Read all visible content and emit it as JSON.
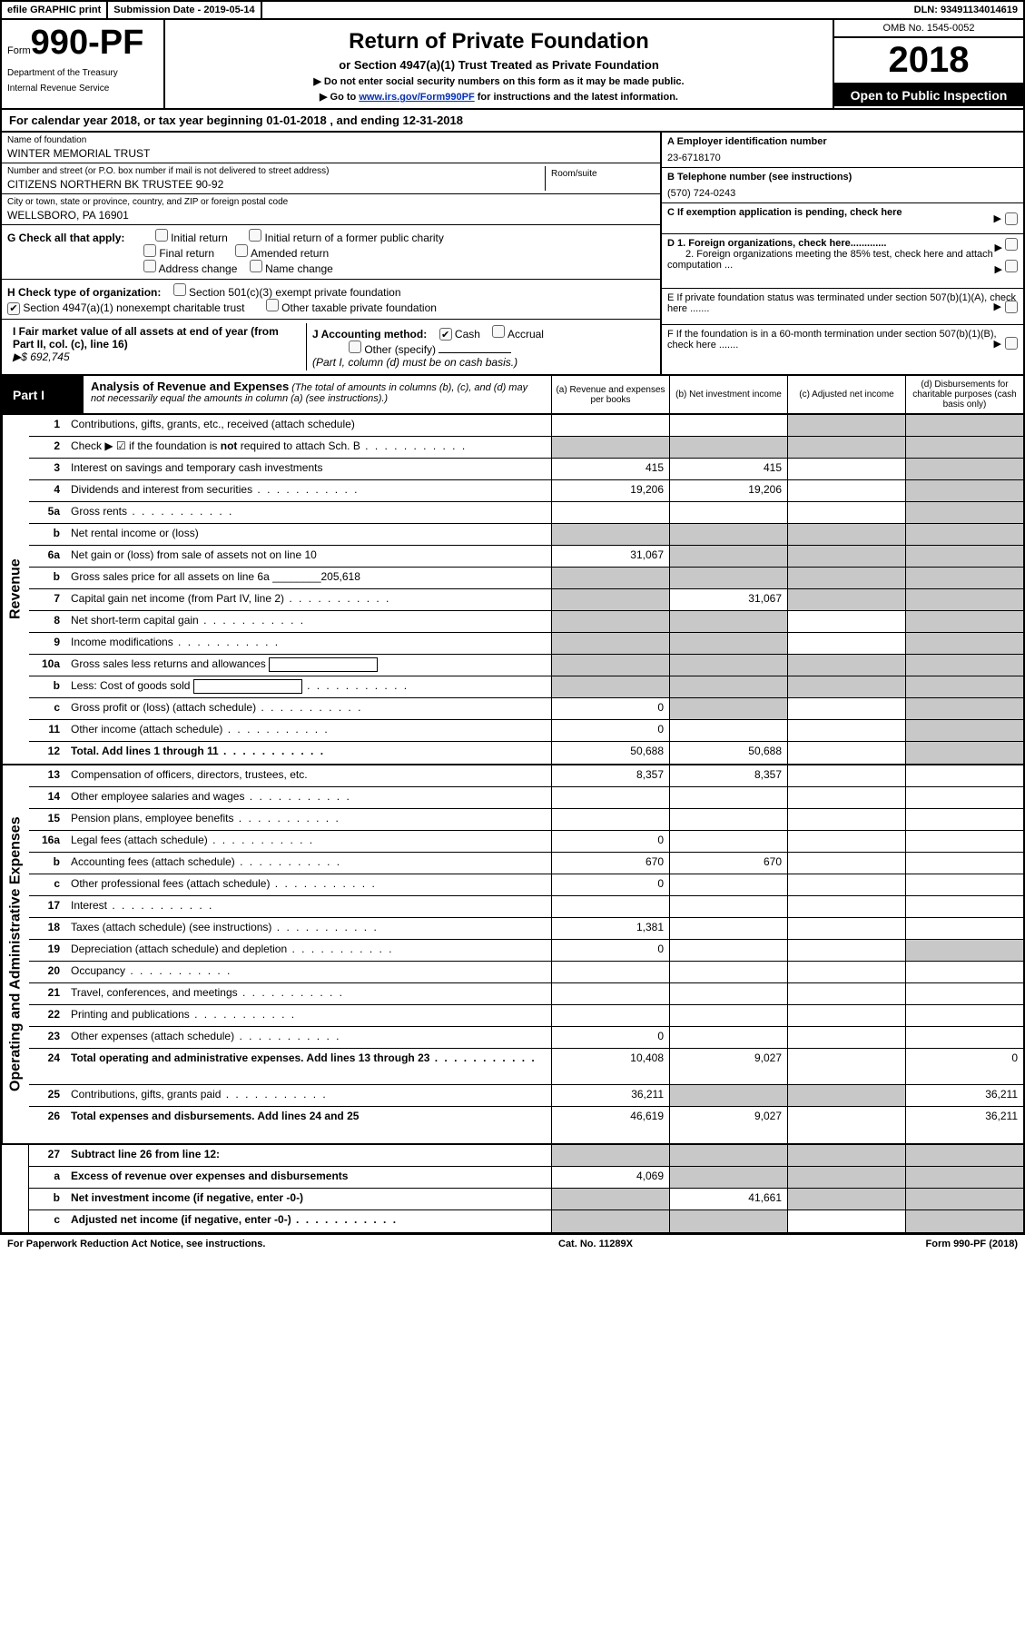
{
  "top_bar": {
    "efile": "efile GRAPHIC print",
    "submission": "Submission Date - 2019-05-14",
    "dln": "DLN: 93491134014619"
  },
  "header": {
    "form_prefix": "Form",
    "form_number": "990-PF",
    "dept1": "Department of the Treasury",
    "dept2": "Internal Revenue Service",
    "title": "Return of Private Foundation",
    "subtitle": "or Section 4947(a)(1) Trust Treated as Private Foundation",
    "note1": "▶ Do not enter social security numbers on this form as it may be made public.",
    "note2_prefix": "▶ Go to ",
    "note2_link": "www.irs.gov/Form990PF",
    "note2_suffix": " for instructions and the latest information.",
    "omb": "OMB No. 1545-0052",
    "year": "2018",
    "open_public": "Open to Public Inspection"
  },
  "cal_year": "For calendar year 2018, or tax year beginning 01-01-2018            , and ending 12-31-2018",
  "info": {
    "name_label": "Name of foundation",
    "name": "WINTER MEMORIAL TRUST",
    "addr_label": "Number and street (or P.O. box number if mail is not delivered to street address)",
    "addr": "CITIZENS NORTHERN BK TRUSTEE 90-92",
    "room_label": "Room/suite",
    "city_label": "City or town, state or province, country, and ZIP or foreign postal code",
    "city": "WELLSBORO, PA  16901",
    "ein_label": "A Employer identification number",
    "ein": "23-6718170",
    "phone_label": "B Telephone number (see instructions)",
    "phone": "(570) 724-0243",
    "c_label": "C If exemption application is pending, check here",
    "d1_label": "D 1. Foreign organizations, check here.............",
    "d2_label": "2. Foreign organizations meeting the 85% test, check here and attach computation ...",
    "e_label": "E  If private foundation status was terminated under section 507(b)(1)(A), check here .......",
    "f_label": "F  If the foundation is in a 60-month termination under section 507(b)(1)(B), check here ......."
  },
  "section_g": {
    "label": "G Check all that apply:",
    "opt1": "Initial return",
    "opt2": "Initial return of a former public charity",
    "opt3": "Final return",
    "opt4": "Amended return",
    "opt5": "Address change",
    "opt6": "Name change"
  },
  "section_h": {
    "label": "H Check type of organization:",
    "opt1": "Section 501(c)(3) exempt private foundation",
    "opt2": "Section 4947(a)(1) nonexempt charitable trust",
    "opt3": "Other taxable private foundation"
  },
  "section_i": {
    "left_label": "I Fair market value of all assets at end of year (from Part II, col. (c), line 16)",
    "left_val": "▶$  692,745",
    "j_label": "J Accounting method:",
    "j_cash": "Cash",
    "j_accrual": "Accrual",
    "j_other": "Other (specify)",
    "j_note": "(Part I, column (d) must be on cash basis.)"
  },
  "part1": {
    "label": "Part I",
    "title": "Analysis of Revenue and Expenses",
    "note": "(The total of amounts in columns (b), (c), and (d) may not necessarily equal the amounts in column (a) (see instructions).)",
    "col_a": "(a)   Revenue and expenses per books",
    "col_b": "(b)  Net investment income",
    "col_c": "(c)  Adjusted net income",
    "col_d": "(d)  Disbursements for charitable purposes (cash basis only)"
  },
  "vert_revenue": "Revenue",
  "vert_expenses": "Operating and Administrative Expenses",
  "rows_revenue": [
    {
      "n": "1",
      "d": "Contributions, gifts, grants, etc., received (attach schedule)",
      "a": "",
      "b": "",
      "c": "g",
      "dd": "g"
    },
    {
      "n": "2",
      "d": "Check ▶ ☑ if the foundation is not required to attach Sch. B",
      "dots": true,
      "a": "g",
      "b": "g",
      "c": "g",
      "dd": "g",
      "bold_not": true
    },
    {
      "n": "3",
      "d": "Interest on savings and temporary cash investments",
      "a": "415",
      "b": "415",
      "c": "",
      "dd": "g"
    },
    {
      "n": "4",
      "d": "Dividends and interest from securities",
      "dots": true,
      "a": "19,206",
      "b": "19,206",
      "c": "",
      "dd": "g"
    },
    {
      "n": "5a",
      "d": "Gross rents",
      "dots": true,
      "a": "",
      "b": "",
      "c": "",
      "dd": "g"
    },
    {
      "n": "b",
      "d": "Net rental income or (loss)",
      "a": "g",
      "b": "g",
      "c": "g",
      "dd": "g"
    },
    {
      "n": "6a",
      "d": "Net gain or (loss) from sale of assets not on line 10",
      "a": "31,067",
      "b": "g",
      "c": "g",
      "dd": "g"
    },
    {
      "n": "b",
      "d": "Gross sales price for all assets on line 6a ________205,618",
      "a": "g",
      "b": "g",
      "c": "g",
      "dd": "g"
    },
    {
      "n": "7",
      "d": "Capital gain net income (from Part IV, line 2)",
      "dots": true,
      "a": "g",
      "b": "31,067",
      "c": "g",
      "dd": "g"
    },
    {
      "n": "8",
      "d": "Net short-term capital gain",
      "dots": true,
      "a": "g",
      "b": "g",
      "c": "",
      "dd": "g"
    },
    {
      "n": "9",
      "d": "Income modifications",
      "dots": true,
      "a": "g",
      "b": "g",
      "c": "",
      "dd": "g"
    },
    {
      "n": "10a",
      "d": "Gross sales less returns and allowances",
      "box": true,
      "a": "g",
      "b": "g",
      "c": "g",
      "dd": "g"
    },
    {
      "n": "b",
      "d": "Less: Cost of goods sold",
      "dots": true,
      "box": true,
      "a": "g",
      "b": "g",
      "c": "g",
      "dd": "g"
    },
    {
      "n": "c",
      "d": "Gross profit or (loss) (attach schedule)",
      "dots": true,
      "a": "0",
      "b": "g",
      "c": "",
      "dd": "g"
    },
    {
      "n": "11",
      "d": "Other income (attach schedule)",
      "dots": true,
      "a": "0",
      "b": "",
      "c": "",
      "dd": "g"
    },
    {
      "n": "12",
      "d": "Total. Add lines 1 through 11",
      "bold": true,
      "dots": true,
      "a": "50,688",
      "b": "50,688",
      "c": "",
      "dd": "g"
    }
  ],
  "rows_expenses": [
    {
      "n": "13",
      "d": "Compensation of officers, directors, trustees, etc.",
      "a": "8,357",
      "b": "8,357",
      "c": "",
      "dd": ""
    },
    {
      "n": "14",
      "d": "Other employee salaries and wages",
      "dots": true,
      "a": "",
      "b": "",
      "c": "",
      "dd": ""
    },
    {
      "n": "15",
      "d": "Pension plans, employee benefits",
      "dots": true,
      "a": "",
      "b": "",
      "c": "",
      "dd": ""
    },
    {
      "n": "16a",
      "d": "Legal fees (attach schedule)",
      "dots": true,
      "a": "0",
      "b": "",
      "c": "",
      "dd": ""
    },
    {
      "n": "b",
      "d": "Accounting fees (attach schedule)",
      "dots": true,
      "a": "670",
      "b": "670",
      "c": "",
      "dd": ""
    },
    {
      "n": "c",
      "d": "Other professional fees (attach schedule)",
      "dots": true,
      "a": "0",
      "b": "",
      "c": "",
      "dd": ""
    },
    {
      "n": "17",
      "d": "Interest",
      "dots": true,
      "a": "",
      "b": "",
      "c": "",
      "dd": ""
    },
    {
      "n": "18",
      "d": "Taxes (attach schedule) (see instructions)",
      "dots": true,
      "a": "1,381",
      "b": "",
      "c": "",
      "dd": ""
    },
    {
      "n": "19",
      "d": "Depreciation (attach schedule) and depletion",
      "dots": true,
      "a": "0",
      "b": "",
      "c": "",
      "dd": "g"
    },
    {
      "n": "20",
      "d": "Occupancy",
      "dots": true,
      "a": "",
      "b": "",
      "c": "",
      "dd": ""
    },
    {
      "n": "21",
      "d": "Travel, conferences, and meetings",
      "dots": true,
      "a": "",
      "b": "",
      "c": "",
      "dd": ""
    },
    {
      "n": "22",
      "d": "Printing and publications",
      "dots": true,
      "a": "",
      "b": "",
      "c": "",
      "dd": ""
    },
    {
      "n": "23",
      "d": "Other expenses (attach schedule)",
      "dots": true,
      "a": "0",
      "b": "",
      "c": "",
      "dd": ""
    },
    {
      "n": "24",
      "d": "Total operating and administrative expenses. Add lines 13 through 23",
      "bold": true,
      "dots": true,
      "a": "10,408",
      "b": "9,027",
      "c": "",
      "dd": "0",
      "tall": true
    },
    {
      "n": "25",
      "d": "Contributions, gifts, grants paid",
      "dots": true,
      "a": "36,211",
      "b": "g",
      "c": "g",
      "dd": "36,211"
    },
    {
      "n": "26",
      "d": "Total expenses and disbursements. Add lines 24 and 25",
      "bold": true,
      "a": "46,619",
      "b": "9,027",
      "c": "",
      "dd": "36,211",
      "tall": true
    }
  ],
  "rows_bottom": [
    {
      "n": "27",
      "d": "Subtract line 26 from line 12:",
      "bold": true,
      "a": "g",
      "b": "g",
      "c": "g",
      "dd": "g"
    },
    {
      "n": "a",
      "d": "Excess of revenue over expenses and disbursements",
      "bold": true,
      "a": "4,069",
      "b": "g",
      "c": "g",
      "dd": "g"
    },
    {
      "n": "b",
      "d": "Net investment income (if negative, enter -0-)",
      "bold": true,
      "a": "g",
      "b": "41,661",
      "c": "g",
      "dd": "g"
    },
    {
      "n": "c",
      "d": "Adjusted net income (if negative, enter -0-)",
      "bold": true,
      "dots": true,
      "a": "g",
      "b": "g",
      "c": "",
      "dd": "g"
    }
  ],
  "footer": {
    "left": "For Paperwork Reduction Act Notice, see instructions.",
    "center": "Cat. No. 11289X",
    "right": "Form 990-PF (2018)"
  }
}
